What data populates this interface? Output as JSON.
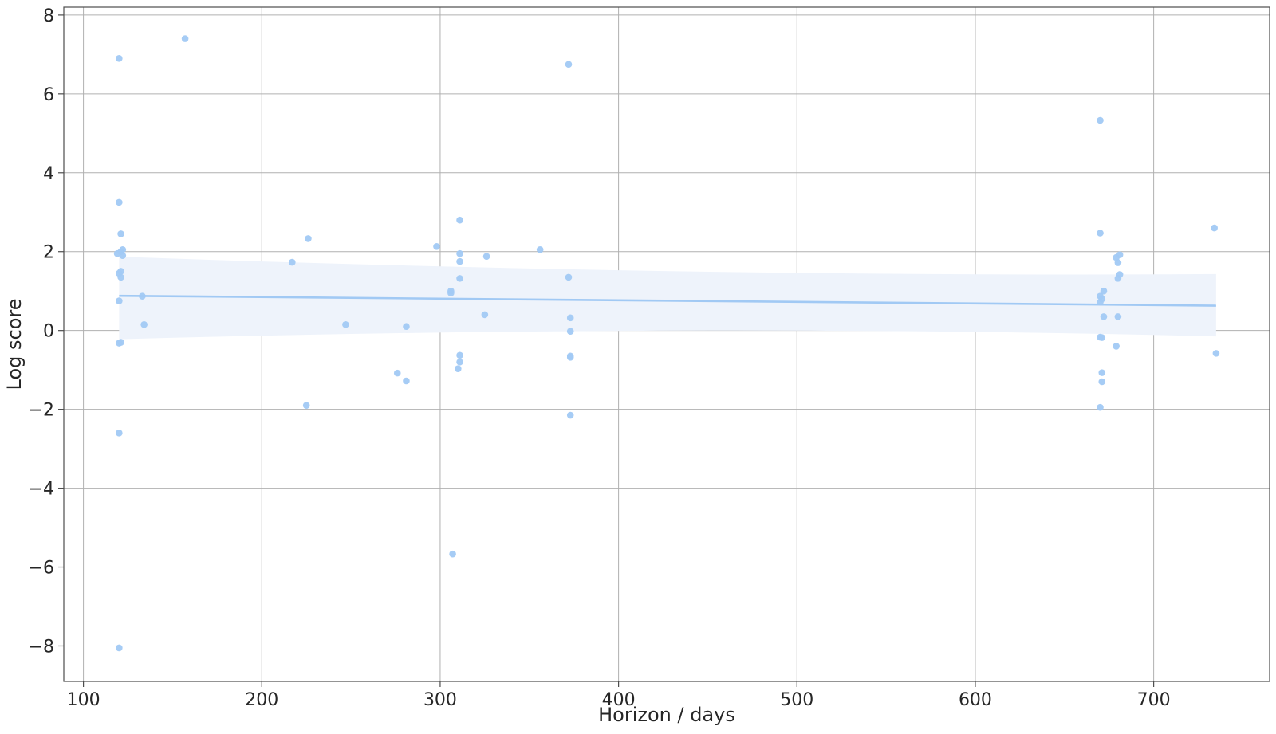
{
  "chart_data": {
    "type": "scatter",
    "xlabel": "Horizon / days",
    "ylabel": "Log score",
    "xlim": [
      89,
      765
    ],
    "ylim": [
      -8.9,
      8.2
    ],
    "xticks": [
      100,
      200,
      300,
      400,
      500,
      600,
      700
    ],
    "yticks": [
      -8,
      -6,
      -4,
      -2,
      0,
      2,
      4,
      6,
      8
    ],
    "xtick_labels": [
      "100",
      "200",
      "300",
      "400",
      "500",
      "600",
      "700"
    ],
    "ytick_labels": [
      "−8",
      "−6",
      "−4",
      "−2",
      "0",
      "2",
      "4",
      "6",
      "8"
    ],
    "grid": true,
    "point_color": "#a1c9f4",
    "line_color": "#a1c9f4",
    "band_color": "#eef3fb",
    "points": [
      {
        "x": 120,
        "y": 6.9
      },
      {
        "x": 120,
        "y": 3.25
      },
      {
        "x": 121,
        "y": 2.45
      },
      {
        "x": 122,
        "y": 2.05
      },
      {
        "x": 121,
        "y": 2.0
      },
      {
        "x": 122,
        "y": 1.9
      },
      {
        "x": 119,
        "y": 1.95
      },
      {
        "x": 121,
        "y": 1.5
      },
      {
        "x": 120,
        "y": 1.45
      },
      {
        "x": 121,
        "y": 1.35
      },
      {
        "x": 120,
        "y": 0.75
      },
      {
        "x": 120,
        "y": -0.32
      },
      {
        "x": 121,
        "y": -0.3
      },
      {
        "x": 120,
        "y": -2.6
      },
      {
        "x": 120,
        "y": -8.05
      },
      {
        "x": 133,
        "y": 0.87
      },
      {
        "x": 134,
        "y": 0.15
      },
      {
        "x": 157,
        "y": 7.4
      },
      {
        "x": 217,
        "y": 1.73
      },
      {
        "x": 226,
        "y": 2.33
      },
      {
        "x": 225,
        "y": -1.9
      },
      {
        "x": 247,
        "y": 0.15
      },
      {
        "x": 276,
        "y": -1.08
      },
      {
        "x": 281,
        "y": -1.28
      },
      {
        "x": 281,
        "y": 0.1
      },
      {
        "x": 298,
        "y": 2.13
      },
      {
        "x": 306,
        "y": 1.0
      },
      {
        "x": 306,
        "y": 0.95
      },
      {
        "x": 307,
        "y": -5.67
      },
      {
        "x": 310,
        "y": -0.97
      },
      {
        "x": 311,
        "y": 2.8
      },
      {
        "x": 311,
        "y": 1.95
      },
      {
        "x": 311,
        "y": 1.75
      },
      {
        "x": 311,
        "y": 1.32
      },
      {
        "x": 311,
        "y": -0.63
      },
      {
        "x": 311,
        "y": -0.8
      },
      {
        "x": 325,
        "y": 0.4
      },
      {
        "x": 326,
        "y": 1.88
      },
      {
        "x": 356,
        "y": 2.05
      },
      {
        "x": 372,
        "y": 6.75
      },
      {
        "x": 372,
        "y": 1.35
      },
      {
        "x": 373,
        "y": 0.32
      },
      {
        "x": 373,
        "y": -0.02
      },
      {
        "x": 373,
        "y": -0.65
      },
      {
        "x": 373,
        "y": -0.68
      },
      {
        "x": 373,
        "y": -2.15
      },
      {
        "x": 670,
        "y": 5.33
      },
      {
        "x": 670,
        "y": 2.47
      },
      {
        "x": 670,
        "y": 0.87
      },
      {
        "x": 671,
        "y": 0.8
      },
      {
        "x": 670,
        "y": 0.72
      },
      {
        "x": 670,
        "y": -0.17
      },
      {
        "x": 671,
        "y": -0.18
      },
      {
        "x": 671,
        "y": -1.07
      },
      {
        "x": 671,
        "y": -1.3
      },
      {
        "x": 670,
        "y": -1.95
      },
      {
        "x": 672,
        "y": 1.0
      },
      {
        "x": 672,
        "y": 0.35
      },
      {
        "x": 679,
        "y": 1.85
      },
      {
        "x": 681,
        "y": 1.92
      },
      {
        "x": 680,
        "y": 1.72
      },
      {
        "x": 681,
        "y": 1.42
      },
      {
        "x": 680,
        "y": 1.32
      },
      {
        "x": 680,
        "y": 0.35
      },
      {
        "x": 679,
        "y": -0.4
      },
      {
        "x": 734,
        "y": 2.6
      },
      {
        "x": 735,
        "y": -0.58
      }
    ],
    "regression": {
      "x_range": [
        120,
        735
      ],
      "line": [
        0.88,
        0.63
      ],
      "band_upper": [
        1.87,
        1.43
      ],
      "band_lower": [
        -0.22,
        -0.15
      ],
      "band_mid_x": 446,
      "band_mid_upper": 1.2,
      "band_mid_lower": 0.3
    }
  }
}
